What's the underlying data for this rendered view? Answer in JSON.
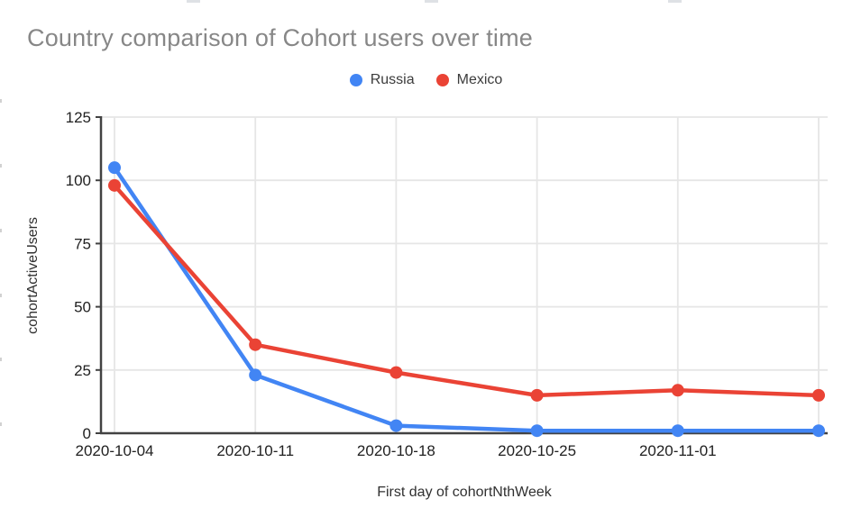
{
  "chart_data": {
    "type": "line",
    "title": "Country comparison of Cohort users over time",
    "xlabel": "First day of cohortNthWeek",
    "ylabel": "cohortActiveUsers",
    "ylim": [
      0,
      125
    ],
    "y_tick_step": 25,
    "y_tick_labels": [
      "0",
      "25",
      "50",
      "75",
      "100",
      "125"
    ],
    "x_tick_labels": [
      "2020-10-04",
      "2020-10-11",
      "2020-10-18",
      "2020-10-25",
      "2020-11-01",
      ""
    ],
    "grid": true,
    "legend_position": "top-center",
    "series": [
      {
        "name": "Russia",
        "color": "#4285F4",
        "values": [
          105,
          23,
          3,
          1,
          1,
          1
        ]
      },
      {
        "name": "Mexico",
        "color": "#EA4335",
        "values": [
          98,
          35,
          24,
          15,
          17,
          15
        ]
      }
    ],
    "colors": {
      "title_text": "#878787",
      "tick_text": "#212121",
      "axis_line": "#424242",
      "gridline": "#e6e6e6"
    }
  }
}
